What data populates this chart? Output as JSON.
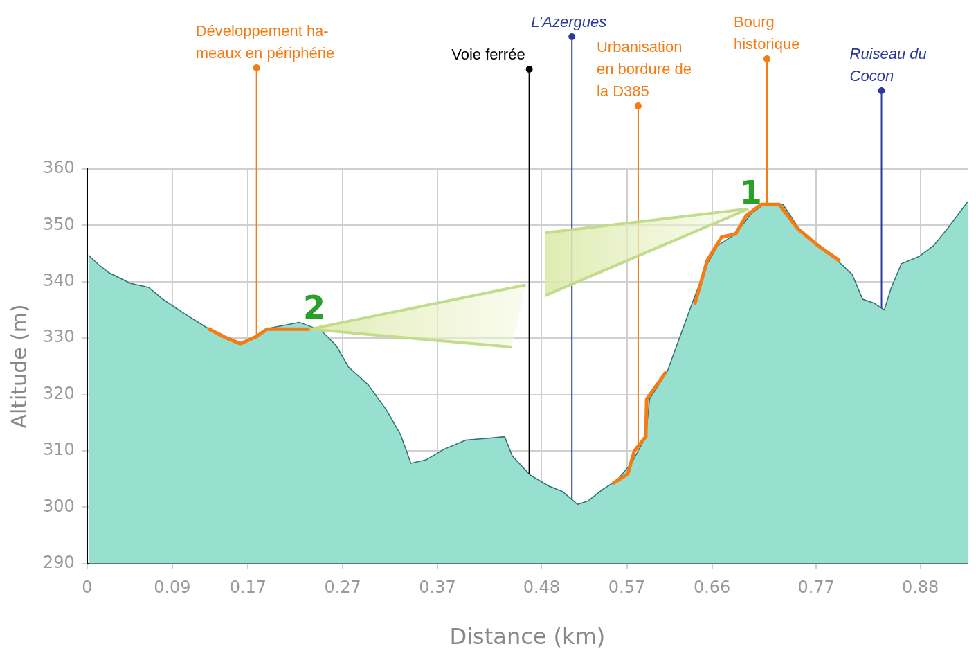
{
  "chart_data": {
    "type": "area",
    "xlabel": "Distance (km)",
    "ylabel": "Altitude (m)",
    "xlim": [
      0,
      0.93
    ],
    "xticks": [
      0,
      0.09,
      0.17,
      0.27,
      0.37,
      0.48,
      0.57,
      0.66,
      0.77,
      0.88
    ],
    "ylim": [
      290,
      360
    ],
    "yticks": [
      290,
      300,
      310,
      320,
      330,
      340,
      350,
      360
    ],
    "grid": true,
    "legend": false,
    "series": [
      {
        "type": "area",
        "color": "#97dfcf",
        "x": [
          0.0015,
          0.011,
          0.023,
          0.046,
          0.065,
          0.08,
          0.103,
          0.126,
          0.141,
          0.162,
          0.179,
          0.194,
          0.224,
          0.247,
          0.263,
          0.276,
          0.297,
          0.316,
          0.331,
          0.342,
          0.358,
          0.377,
          0.4,
          0.422,
          0.441,
          0.449,
          0.468,
          0.487,
          0.502,
          0.518,
          0.529,
          0.544,
          0.559,
          0.575,
          0.59,
          0.594,
          0.613,
          0.624,
          0.639,
          0.655,
          0.666,
          0.685,
          0.701,
          0.716,
          0.735,
          0.754,
          0.774,
          0.796,
          0.808,
          0.819,
          0.831,
          0.842,
          0.849,
          0.86,
          0.879,
          0.894,
          0.909,
          0.93
        ],
        "values": [
          344.7,
          343.2,
          341.6,
          339.7,
          339.0,
          336.9,
          334.3,
          331.9,
          330.6,
          329.2,
          330.3,
          331.8,
          332.8,
          331.4,
          328.7,
          324.9,
          321.7,
          317.3,
          312.9,
          307.8,
          308.4,
          310.3,
          311.9,
          312.2,
          312.5,
          309.1,
          305.7,
          303.8,
          302.8,
          300.5,
          301.1,
          303.1,
          304.7,
          307.8,
          312.5,
          319.2,
          324.2,
          329.3,
          336.2,
          343.2,
          346.4,
          348.5,
          352.0,
          353.9,
          353.7,
          348.9,
          346.4,
          343.2,
          341.3,
          336.9,
          336.2,
          335.0,
          338.8,
          343.2,
          344.5,
          346.4,
          349.5,
          354.2
        ]
      },
      {
        "type": "line",
        "color": "#f57c14",
        "x": [
          0.129,
          0.145,
          0.162,
          0.179,
          0.19,
          0.217,
          0.236,
          0.4,
          0.556,
          0.571,
          0.578,
          0.59,
          0.591,
          0.611,
          0.62,
          0.642,
          0.655,
          0.67,
          0.685,
          0.696,
          0.712,
          0.731,
          0.75,
          0.772,
          0.794
        ],
        "values": [
          331.6,
          330.2,
          329.0,
          330.3,
          331.6,
          331.6,
          331.6,
          null,
          304.3,
          305.9,
          310.0,
          312.5,
          319.2,
          323.9,
          null,
          336.2,
          343.8,
          347.9,
          348.5,
          351.7,
          353.7,
          353.7,
          349.5,
          346.4,
          343.8
        ]
      }
    ],
    "ref_lines": [
      {
        "axis": "x",
        "value": 0.179,
        "label": "Développement ha-\nmeaux en périphérie",
        "color": "#f57c14"
      },
      {
        "axis": "x",
        "value": 0.467,
        "label": "Voie ferrée",
        "color": "#000000"
      },
      {
        "axis": "x",
        "value": 0.512,
        "label": "L’Azergues",
        "color": "#2b3a9a"
      },
      {
        "axis": "x",
        "value": 0.582,
        "label": "Urbanisation\nen bordure de\nla D385",
        "color": "#f57c14"
      },
      {
        "axis": "x",
        "value": 0.718,
        "label": "Bourg\nhistorique",
        "color": "#f57c14"
      },
      {
        "axis": "x",
        "value": 0.839,
        "label": "Ruiseau du\nCocon",
        "color": "#2b3a9a"
      }
    ],
    "annotations": [
      {
        "text": "1",
        "x": 0.701,
        "y": 352.0
      },
      {
        "text": "2",
        "x": 0.24,
        "y": 331.6
      }
    ]
  }
}
